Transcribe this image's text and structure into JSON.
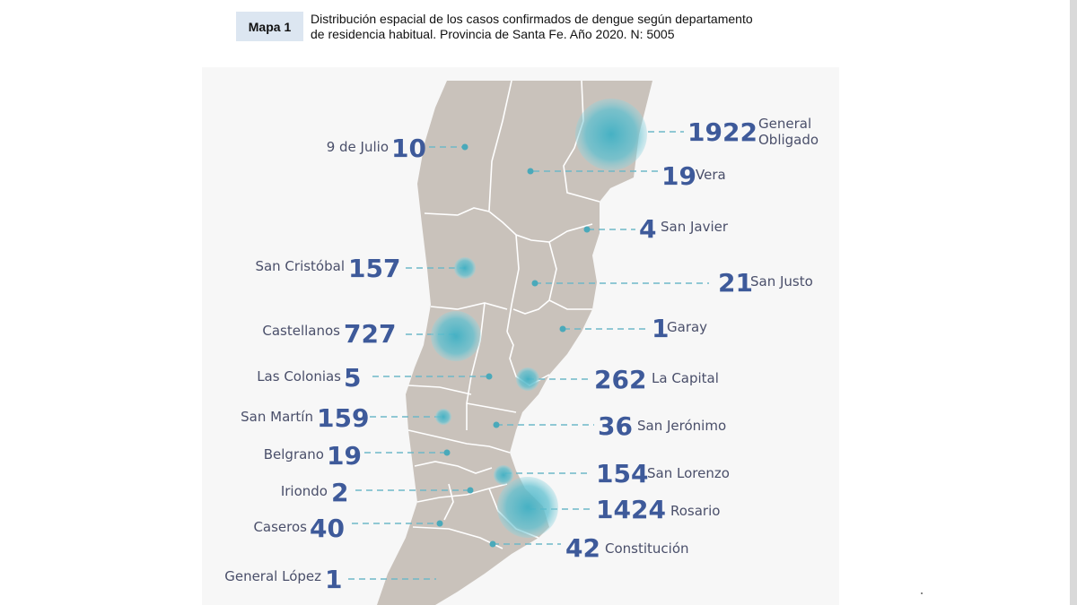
{
  "header": {
    "badge": "Mapa 1",
    "line1": "Distribución espacial de los casos confirmados de dengue según departamento",
    "line2": "de residencia habitual. Provincia de Santa Fe. Año 2020. N: 5005"
  },
  "colors": {
    "province_fill": "#c9c2bb",
    "number_color": "#3e5a9a",
    "bubble_color": "#3fb0c4",
    "leader_color": "#6fb8c8",
    "badge_bg": "#dce6f1"
  },
  "departments": [
    {
      "name": "General Obligado",
      "name_line1": "General",
      "name_line2": "Obligado",
      "cases": "1922"
    },
    {
      "name": "9 de Julio",
      "cases": "10"
    },
    {
      "name": "Vera",
      "cases": "19"
    },
    {
      "name": "San Javier",
      "cases": "4"
    },
    {
      "name": "San Cristóbal",
      "cases": "157"
    },
    {
      "name": "San Justo",
      "cases": "21"
    },
    {
      "name": "Castellanos",
      "cases": "727"
    },
    {
      "name": "Garay",
      "cases": "1"
    },
    {
      "name": "Las Colonias",
      "cases": "5"
    },
    {
      "name": "La Capital",
      "cases": "262"
    },
    {
      "name": "San Martín",
      "cases": "159"
    },
    {
      "name": "San Jerónimo",
      "cases": "36"
    },
    {
      "name": "Belgrano",
      "cases": "19"
    },
    {
      "name": "San Lorenzo",
      "cases": "154"
    },
    {
      "name": "Iriondo",
      "cases": "2"
    },
    {
      "name": "Rosario",
      "cases": "1424"
    },
    {
      "name": "Caseros",
      "cases": "40"
    },
    {
      "name": "Constitución",
      "cases": "42"
    },
    {
      "name": "General López",
      "cases": "1"
    }
  ]
}
